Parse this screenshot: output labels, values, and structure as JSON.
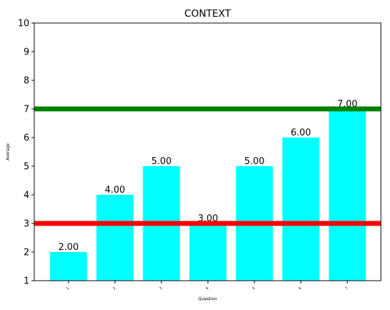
{
  "chart_data": {
    "type": "bar",
    "title": "CONTEXT",
    "xlabel": "Question",
    "ylabel": "Average",
    "categories": [
      "1",
      "2",
      "3",
      "4",
      "5",
      "6",
      "7"
    ],
    "values": [
      2.0,
      4.0,
      5.0,
      3.0,
      5.0,
      6.0,
      7.0
    ],
    "value_labels": [
      "2.00",
      "4.00",
      "5.00",
      "3.00",
      "5.00",
      "6.00",
      "7.00"
    ],
    "ylim": [
      1,
      10
    ],
    "yticks": [
      1,
      2,
      3,
      4,
      5,
      6,
      7,
      8,
      9,
      10
    ],
    "ytick_labels": [
      "1",
      "2",
      "3",
      "4",
      "5",
      "6",
      "7",
      "8",
      "9",
      "10"
    ],
    "bar_color": "#00ffff",
    "reference_lines": [
      {
        "value": 7,
        "color": "#008000"
      },
      {
        "value": 3,
        "color": "#ff0000"
      }
    ],
    "grid": false,
    "legend": "none"
  }
}
